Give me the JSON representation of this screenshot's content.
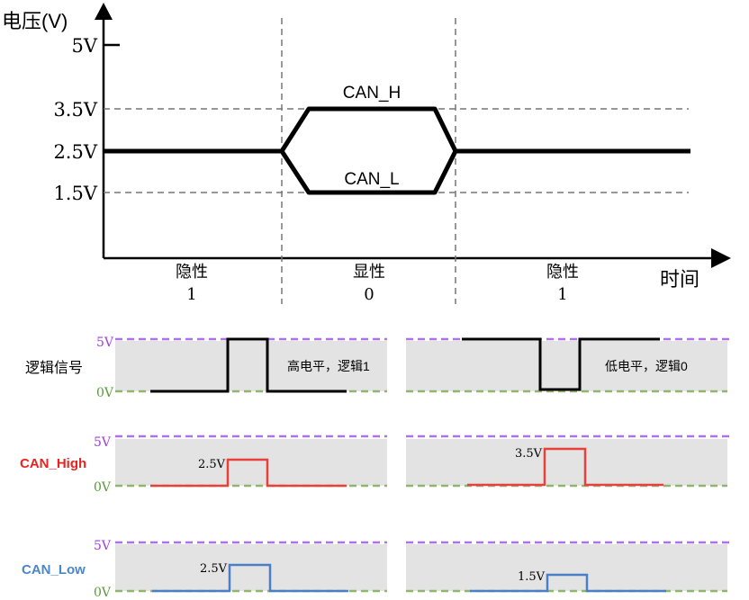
{
  "top_chart": {
    "y_axis_label": "电压(V)",
    "x_axis_label": "时间",
    "y_ticks": [
      "5V",
      "3.5V",
      "2.5V",
      "1.5V"
    ],
    "signal_labels": {
      "high": "CAN_H",
      "low": "CAN_L"
    },
    "states": [
      {
        "name": "隐性",
        "bit": "1"
      },
      {
        "name": "显性",
        "bit": "0"
      },
      {
        "name": "隐性",
        "bit": "1"
      }
    ]
  },
  "bottom": {
    "row_labels": {
      "logic": "逻辑信号",
      "can_high": "CAN_High",
      "can_low": "CAN_Low"
    },
    "level_5v": "5V",
    "level_0v": "0V",
    "left": {
      "note": "高电平，逻辑1",
      "can_high_level": "2.5V",
      "can_low_level": "2.5V"
    },
    "right": {
      "note": "低电平，逻辑0",
      "can_high_level": "3.5V",
      "can_low_level": "1.5V"
    }
  },
  "colors": {
    "can_high": "#e8413c",
    "can_low": "#4a7fc7",
    "level_5v": "#a040e0",
    "level_0v": "#6aa84f",
    "band": "#e3e3e3"
  }
}
